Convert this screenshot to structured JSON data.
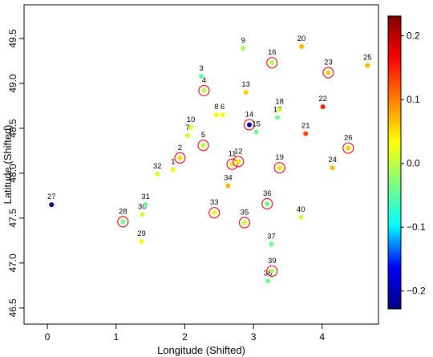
{
  "chart_data": {
    "type": "scatter",
    "x_label": "Longitude (Shifted)",
    "y_label": "Latitude (Shifted)",
    "labels": [
      "1",
      "2",
      "3",
      "4",
      "5",
      "6",
      "7",
      "8",
      "9",
      "10",
      "11",
      "12",
      "13",
      "14",
      "15",
      "16",
      "17",
      "18",
      "19",
      "20",
      "21",
      "22",
      "23",
      "24",
      "25",
      "26",
      "27",
      "28",
      "29",
      "30",
      "31",
      "32",
      "33",
      "34",
      "35",
      "36",
      "37",
      "38",
      "39",
      "40"
    ],
    "x": [
      1.83,
      1.93,
      2.24,
      2.28,
      2.27,
      2.55,
      2.04,
      2.46,
      2.85,
      2.09,
      2.69,
      2.78,
      2.89,
      2.94,
      3.04,
      3.27,
      3.35,
      3.38,
      3.38,
      3.7,
      3.76,
      4.01,
      4.09,
      4.15,
      4.66,
      4.38,
      0.06,
      1.1,
      1.37,
      1.38,
      1.43,
      1.6,
      2.43,
      2.63,
      2.87,
      3.2,
      3.26,
      3.21,
      3.27,
      3.69
    ],
    "y": [
      48.04,
      48.17,
      49.08,
      48.92,
      48.31,
      48.65,
      48.42,
      48.65,
      49.39,
      48.51,
      48.1,
      48.13,
      48.9,
      48.54,
      48.46,
      49.23,
      48.62,
      48.71,
      48.06,
      49.41,
      48.44,
      48.74,
      49.12,
      48.06,
      49.2,
      48.28,
      47.65,
      47.46,
      47.24,
      47.54,
      47.65,
      47.99,
      47.56,
      47.86,
      47.45,
      47.66,
      47.21,
      46.8,
      46.91,
      47.51
    ],
    "color_values": [
      0.03,
      0.05,
      -0.05,
      0.0,
      0.0,
      0.03,
      0.01,
      0.03,
      -0.01,
      0.02,
      0.05,
      0.05,
      0.06,
      -0.2,
      -0.04,
      0.0,
      -0.04,
      0.01,
      0.05,
      0.07,
      0.13,
      0.15,
      0.06,
      0.07,
      0.07,
      0.06,
      -0.22,
      -0.04,
      0.03,
      0.01,
      -0.04,
      0.01,
      0.02,
      0.07,
      0.01,
      -0.04,
      -0.04,
      -0.04,
      -0.01,
      0.01
    ],
    "circled": [
      false,
      true,
      false,
      true,
      true,
      false,
      false,
      false,
      false,
      false,
      true,
      true,
      false,
      true,
      false,
      true,
      false,
      false,
      true,
      false,
      false,
      false,
      true,
      false,
      false,
      true,
      false,
      true,
      false,
      false,
      false,
      false,
      true,
      false,
      true,
      true,
      false,
      false,
      true,
      false
    ],
    "circle_color": "#e8191a",
    "xlim": [
      -0.34,
      4.82
    ],
    "ylim": [
      46.32,
      49.875
    ],
    "xticks": [
      0,
      1,
      2,
      3,
      4
    ],
    "yticks": [
      46.5,
      {
        "value": 47,
        "label": "47.0"
      },
      47.5,
      {
        "value": 48,
        "label": "48.0"
      },
      48.5,
      {
        "value": 49,
        "label": "49.0"
      },
      49.5
    ],
    "clim": [
      -0.228,
      0.231
    ],
    "cticks": [
      {
        "value": -0.2,
        "label": "−0.2"
      },
      {
        "value": -0.1,
        "label": "−0.1"
      },
      {
        "value": 0,
        "label": "0.0"
      },
      0.1,
      0.2
    ],
    "colorscale": [
      "#00007f",
      "#0000ff",
      "#00ffff",
      "#7fff7f",
      "#ffff00",
      "#ff7f00",
      "#ff0000",
      "#7f0000"
    ]
  }
}
